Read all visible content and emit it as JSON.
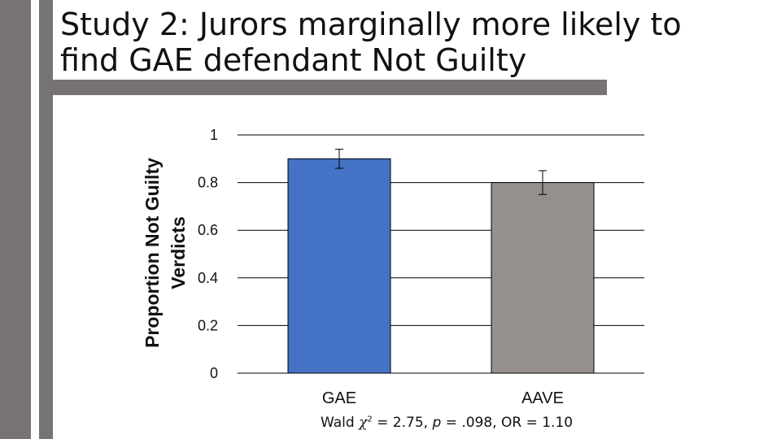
{
  "slide": {
    "title_line1": "Study 2: Jurors marginally more likely to",
    "title_line2": "find GAE defendant Not Guilty"
  },
  "colors": {
    "decor_bar": "#777373",
    "gae_bar": "#4472C4",
    "aave_bar": "#958F8D",
    "gridline": "#000000"
  },
  "chart_data": {
    "type": "bar",
    "title": "",
    "ylabel_line1": "Proportion Not Guilty",
    "ylabel_line2": "Verdicts",
    "xlabel": "",
    "ylim": [
      0,
      1
    ],
    "yticks": [
      0,
      0.2,
      0.4,
      0.6,
      0.8,
      1
    ],
    "ytick_labels": [
      "0",
      "0.2",
      "0.4",
      "0.6",
      "0.8",
      "1"
    ],
    "grid": true,
    "legend": "none",
    "categories": [
      "GAE",
      "AAVE"
    ],
    "values": [
      0.9,
      0.8
    ],
    "error_low": [
      0.86,
      0.75
    ],
    "error_high": [
      0.94,
      0.85
    ]
  },
  "annotation": {
    "prefix": "Wald ",
    "chi": "χ",
    "exp": "2",
    "eq": " = 2.75, ",
    "p": "p",
    "rest": " = .098, OR = 1.10"
  }
}
